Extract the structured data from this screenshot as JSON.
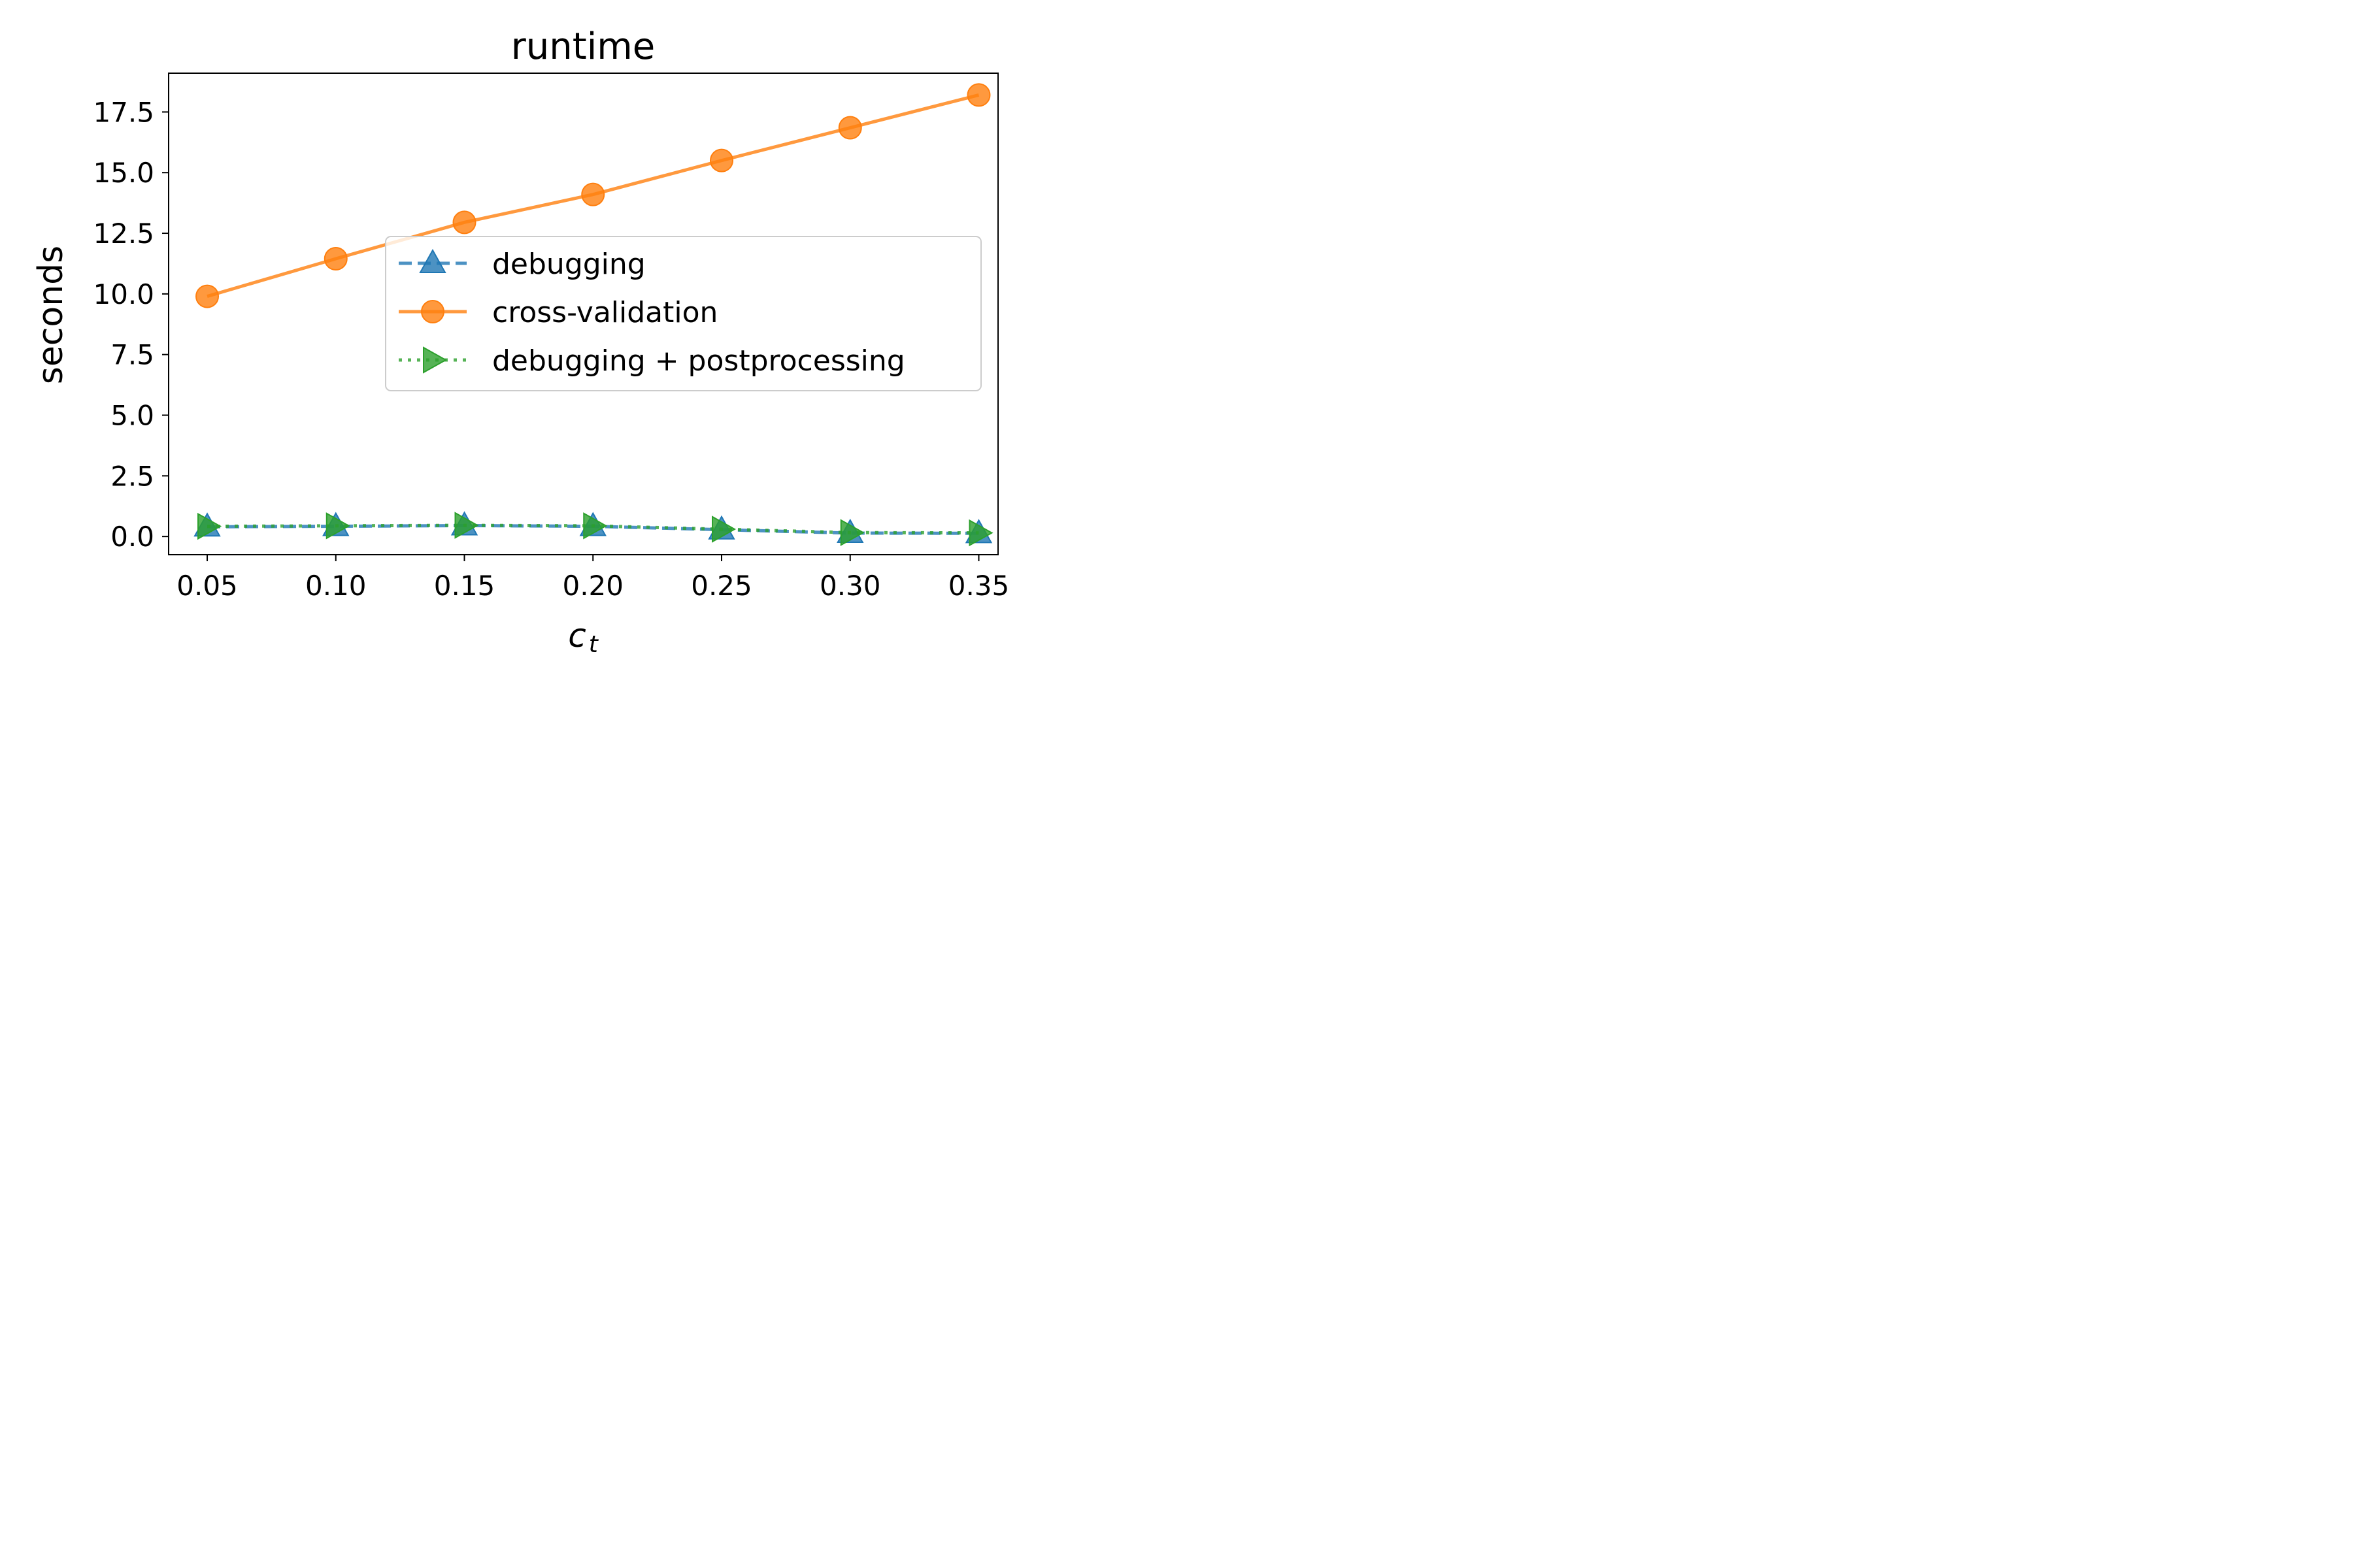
{
  "chart_data": {
    "type": "line",
    "title": "runtime",
    "xlabel": "c",
    "xlabel_subscript": "t",
    "ylabel": "seconds",
    "xlim": [
      0.035,
      0.3575
    ],
    "ylim": [
      -0.75,
      19.1
    ],
    "x_ticks": [
      "0.05",
      "0.10",
      "0.15",
      "0.20",
      "0.25",
      "0.30",
      "0.35"
    ],
    "y_ticks": [
      "0.0",
      "2.5",
      "5.0",
      "7.5",
      "10.0",
      "12.5",
      "15.0",
      "17.5"
    ],
    "x": [
      0.05,
      0.1,
      0.15,
      0.2,
      0.25,
      0.3,
      0.35
    ],
    "grid": false,
    "legend_position": "center-right",
    "series": [
      {
        "name": "debugging",
        "values": [
          0.4,
          0.42,
          0.45,
          0.42,
          0.28,
          0.14,
          0.13
        ],
        "color": "#1f77b4",
        "line_style": "dashed",
        "marker": "triangle-up"
      },
      {
        "name": "cross-validation",
        "values": [
          9.9,
          11.45,
          12.95,
          14.1,
          15.5,
          16.85,
          18.2
        ],
        "color": "#ff7f0e",
        "line_style": "solid",
        "marker": "circle"
      },
      {
        "name": "debugging + postprocessing",
        "values": [
          0.42,
          0.44,
          0.46,
          0.44,
          0.3,
          0.16,
          0.15
        ],
        "color": "#2ca02c",
        "line_style": "dotted",
        "marker": "triangle-right"
      }
    ]
  }
}
